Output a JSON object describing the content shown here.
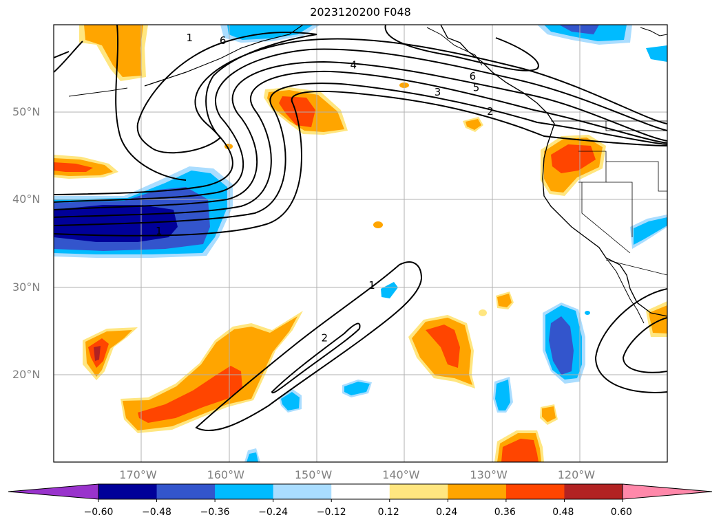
{
  "title": "2023120200 F048",
  "map": {
    "projection": "Plate carree",
    "lon_range": [
      -180,
      -110
    ],
    "lat_range": [
      10,
      60
    ],
    "gridlines": true,
    "coastlines": true,
    "state_borders": true
  },
  "lat_ticks": [
    {
      "value": 50,
      "label": "50°N"
    },
    {
      "value": 40,
      "label": "40°N"
    },
    {
      "value": 30,
      "label": "30°N"
    },
    {
      "value": 20,
      "label": "20°N"
    }
  ],
  "lon_ticks": [
    {
      "value": -170,
      "label": "170°W"
    },
    {
      "value": -160,
      "label": "160°W"
    },
    {
      "value": -150,
      "label": "150°W"
    },
    {
      "value": -140,
      "label": "140°W"
    },
    {
      "value": -130,
      "label": "130°W"
    },
    {
      "value": -120,
      "label": "120°W"
    }
  ],
  "colorbar": {
    "levels": [
      -0.6,
      -0.48,
      -0.36,
      -0.24,
      -0.12,
      0.12,
      0.24,
      0.36,
      0.48,
      0.6
    ],
    "labels": [
      "−0.60",
      "−0.48",
      "−0.36",
      "−0.24",
      "−0.12",
      "0.12",
      "0.24",
      "0.36",
      "0.48",
      "0.60"
    ],
    "colors": [
      "#9933cc",
      "#000099",
      "#3355cc",
      "#00bbff",
      "#aaddff",
      "#ffffff",
      "#ffe680",
      "#ffa500",
      "#ff4500",
      "#b22222",
      "#ff88aa"
    ],
    "extend": "both"
  },
  "contour_labels": [
    {
      "text": "1",
      "lon": -164.5,
      "lat": 58.5
    },
    {
      "text": "6",
      "lon": -160.7,
      "lat": 58.2
    },
    {
      "text": "4",
      "lon": -145.8,
      "lat": 55.4
    },
    {
      "text": "3",
      "lon": -136.2,
      "lat": 52.3
    },
    {
      "text": "5",
      "lon": -131.8,
      "lat": 52.8
    },
    {
      "text": "6",
      "lon": -132.2,
      "lat": 54.1
    },
    {
      "text": "2",
      "lon": -130.2,
      "lat": 50.1
    },
    {
      "text": "1",
      "lon": -168.0,
      "lat": 36.4
    },
    {
      "text": "1",
      "lon": -143.7,
      "lat": 30.2
    },
    {
      "text": "2",
      "lon": -149.1,
      "lat": 24.2
    }
  ]
}
